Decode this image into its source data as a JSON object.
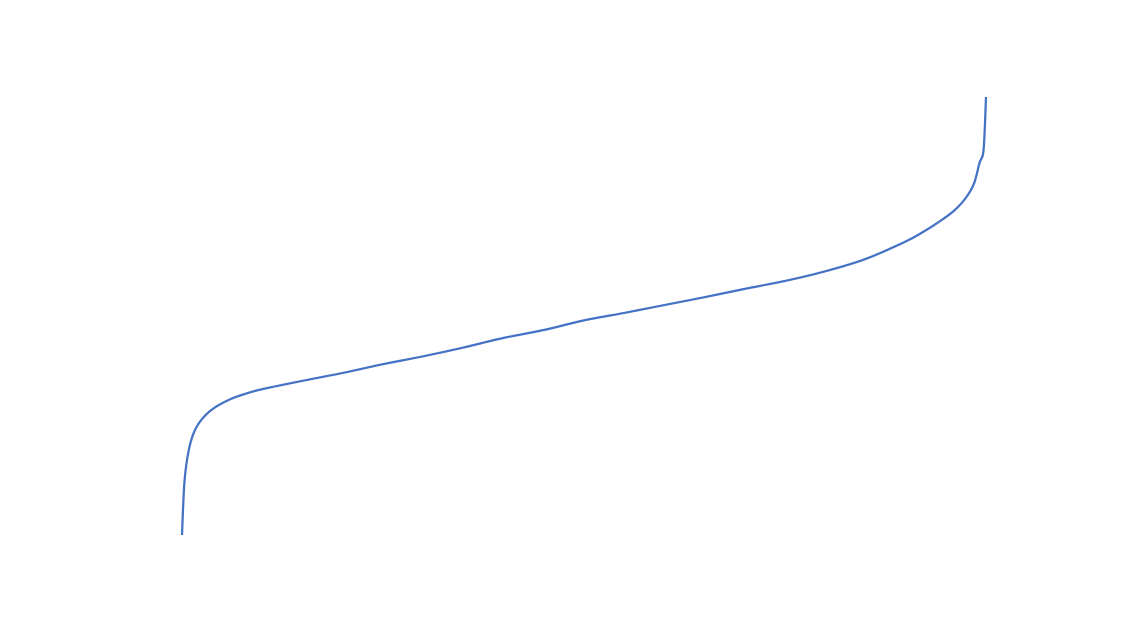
{
  "chart_data": {
    "type": "line",
    "title": "",
    "xlabel": "",
    "ylabel": "",
    "grid": false,
    "legend": "none",
    "xlim": [
      0,
      1
    ],
    "ylim": [
      0,
      1
    ],
    "series": [
      {
        "color": "#4472C4",
        "x": [
          0.0,
          0.003,
          0.008,
          0.015,
          0.025,
          0.04,
          0.06,
          0.08,
          0.1,
          0.15,
          0.2,
          0.25,
          0.3,
          0.35,
          0.4,
          0.45,
          0.5,
          0.55,
          0.6,
          0.65,
          0.7,
          0.75,
          0.8,
          0.85,
          0.9,
          0.92,
          0.94,
          0.96,
          0.975,
          0.985,
          0.992,
          0.997,
          1.0
        ],
        "y": [
          0.0,
          0.12,
          0.19,
          0.235,
          0.265,
          0.29,
          0.31,
          0.323,
          0.333,
          0.352,
          0.37,
          0.39,
          0.408,
          0.428,
          0.45,
          0.468,
          0.49,
          0.507,
          0.525,
          0.543,
          0.562,
          0.58,
          0.602,
          0.63,
          0.67,
          0.69,
          0.713,
          0.74,
          0.77,
          0.802,
          0.85,
          0.88,
          1.0
        ]
      }
    ]
  }
}
